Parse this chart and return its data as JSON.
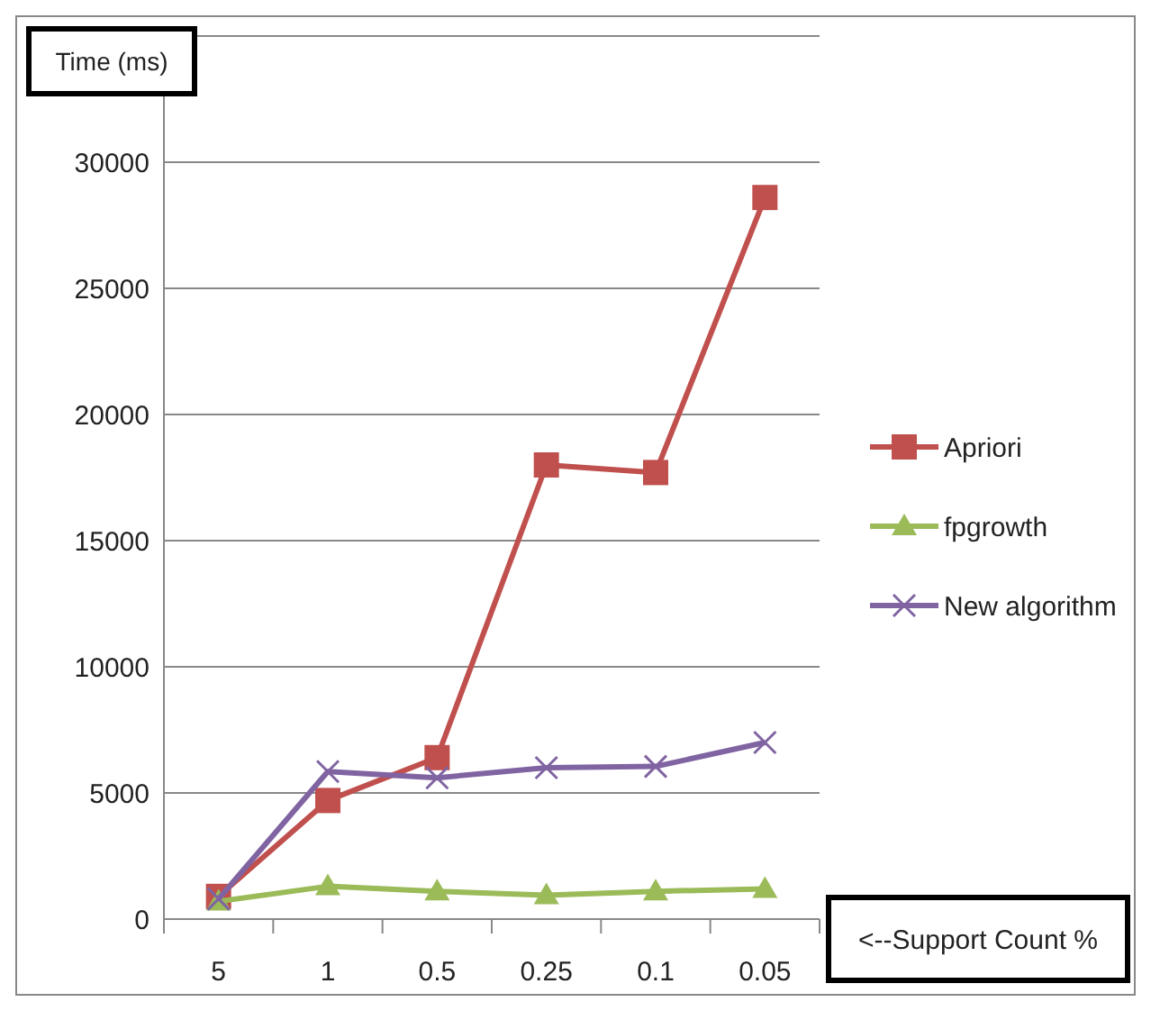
{
  "chart_data": {
    "type": "line",
    "ylabel": "Time (ms)",
    "xlabel": "<--Support Count %",
    "categories": [
      "5",
      "1",
      "0.5",
      "0.25",
      "0.1",
      "0.05"
    ],
    "series": [
      {
        "name": "Apriori",
        "color": "#c0504d",
        "marker": "square",
        "values": [
          900,
          4700,
          6400,
          18000,
          17700,
          28600
        ]
      },
      {
        "name": "fpgrowth",
        "color": "#9bbb59",
        "marker": "triangle",
        "values": [
          700,
          1300,
          1100,
          950,
          1100,
          1200
        ]
      },
      {
        "name": "New algorithm",
        "color": "#8064a2",
        "marker": "cross",
        "values": [
          800,
          5850,
          5600,
          6000,
          6050,
          7000
        ]
      }
    ],
    "ylim": [
      0,
      35000
    ],
    "yticks": [
      0,
      5000,
      10000,
      15000,
      20000,
      25000,
      30000,
      {
        "value": 35000,
        "label": null
      }
    ],
    "grid": "y",
    "legend": "right"
  }
}
